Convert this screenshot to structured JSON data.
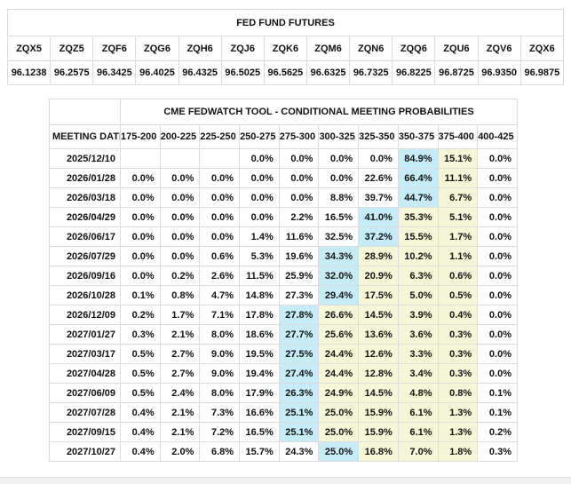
{
  "futures_table": {
    "title": "FED FUND FUTURES",
    "contracts": [
      "ZQX5",
      "ZQZ5",
      "ZQF6",
      "ZQG6",
      "ZQH6",
      "ZQJ6",
      "ZQK6",
      "ZQM6",
      "ZQN6",
      "ZQQ6",
      "ZQU6",
      "ZQV6",
      "ZQX6"
    ],
    "prices": [
      "96.1238",
      "96.2575",
      "96.3425",
      "96.4025",
      "96.4325",
      "96.5025",
      "96.5625",
      "96.6325",
      "96.7325",
      "96.8225",
      "96.8725",
      "96.9350",
      "96.9875"
    ]
  },
  "fedwatch_table": {
    "title": "CME FEDWATCH TOOL - CONDITIONAL MEETING PROBABILITIES",
    "date_header": "MEETING DATE",
    "range_headers": [
      "175-200",
      "200-225",
      "225-250",
      "250-275",
      "275-300",
      "300-325",
      "325-350",
      "350-375",
      "375-400",
      "400-425"
    ],
    "rows": [
      {
        "date": "2025/12/10",
        "cells": [
          "",
          "",
          "",
          "0.0%",
          "0.0%",
          "0.0%",
          "0.0%",
          "84.9%",
          "15.1%",
          "0.0%"
        ],
        "hl": [
          "",
          "",
          "",
          "",
          "",
          "",
          "",
          "c",
          "y",
          ""
        ]
      },
      {
        "date": "2026/01/28",
        "cells": [
          "0.0%",
          "0.0%",
          "0.0%",
          "0.0%",
          "0.0%",
          "0.0%",
          "22.6%",
          "66.4%",
          "11.1%",
          "0.0%"
        ],
        "hl": [
          "",
          "",
          "",
          "",
          "",
          "",
          "",
          "c",
          "y",
          ""
        ]
      },
      {
        "date": "2026/03/18",
        "cells": [
          "0.0%",
          "0.0%",
          "0.0%",
          "0.0%",
          "0.0%",
          "8.8%",
          "39.7%",
          "44.7%",
          "6.7%",
          "0.0%"
        ],
        "hl": [
          "",
          "",
          "",
          "",
          "",
          "",
          "",
          "c",
          "y",
          ""
        ]
      },
      {
        "date": "2026/04/29",
        "cells": [
          "0.0%",
          "0.0%",
          "0.0%",
          "0.0%",
          "2.2%",
          "16.5%",
          "41.0%",
          "35.3%",
          "5.1%",
          "0.0%"
        ],
        "hl": [
          "",
          "",
          "",
          "",
          "",
          "",
          "c",
          "y",
          "y",
          ""
        ]
      },
      {
        "date": "2026/06/17",
        "cells": [
          "0.0%",
          "0.0%",
          "0.0%",
          "1.4%",
          "11.6%",
          "32.5%",
          "37.2%",
          "15.5%",
          "1.7%",
          "0.0%"
        ],
        "hl": [
          "",
          "",
          "",
          "",
          "",
          "",
          "c",
          "y",
          "y",
          ""
        ]
      },
      {
        "date": "2026/07/29",
        "cells": [
          "0.0%",
          "0.0%",
          "0.6%",
          "5.3%",
          "19.6%",
          "34.3%",
          "28.9%",
          "10.2%",
          "1.1%",
          "0.0%"
        ],
        "hl": [
          "",
          "",
          "",
          "",
          "",
          "c",
          "y",
          "y",
          "y",
          ""
        ]
      },
      {
        "date": "2026/09/16",
        "cells": [
          "0.0%",
          "0.2%",
          "2.6%",
          "11.5%",
          "25.9%",
          "32.0%",
          "20.9%",
          "6.3%",
          "0.6%",
          "0.0%"
        ],
        "hl": [
          "",
          "",
          "",
          "",
          "",
          "c",
          "y",
          "y",
          "y",
          ""
        ]
      },
      {
        "date": "2026/10/28",
        "cells": [
          "0.1%",
          "0.8%",
          "4.7%",
          "14.8%",
          "27.3%",
          "29.4%",
          "17.5%",
          "5.0%",
          "0.5%",
          "0.0%"
        ],
        "hl": [
          "",
          "",
          "",
          "",
          "",
          "c",
          "y",
          "y",
          "y",
          ""
        ]
      },
      {
        "date": "2026/12/09",
        "cells": [
          "0.2%",
          "1.7%",
          "7.1%",
          "17.8%",
          "27.8%",
          "26.6%",
          "14.5%",
          "3.9%",
          "0.4%",
          "0.0%"
        ],
        "hl": [
          "",
          "",
          "",
          "",
          "c",
          "y",
          "y",
          "y",
          "y",
          ""
        ]
      },
      {
        "date": "2027/01/27",
        "cells": [
          "0.3%",
          "2.1%",
          "8.0%",
          "18.6%",
          "27.7%",
          "25.6%",
          "13.6%",
          "3.6%",
          "0.3%",
          "0.0%"
        ],
        "hl": [
          "",
          "",
          "",
          "",
          "c",
          "y",
          "y",
          "y",
          "y",
          ""
        ]
      },
      {
        "date": "2027/03/17",
        "cells": [
          "0.5%",
          "2.7%",
          "9.0%",
          "19.5%",
          "27.5%",
          "24.4%",
          "12.6%",
          "3.3%",
          "0.3%",
          "0.0%"
        ],
        "hl": [
          "",
          "",
          "",
          "",
          "c",
          "y",
          "y",
          "y",
          "y",
          ""
        ]
      },
      {
        "date": "2027/04/28",
        "cells": [
          "0.5%",
          "2.7%",
          "9.0%",
          "19.4%",
          "27.4%",
          "24.4%",
          "12.8%",
          "3.4%",
          "0.3%",
          "0.0%"
        ],
        "hl": [
          "",
          "",
          "",
          "",
          "c",
          "y",
          "y",
          "y",
          "y",
          ""
        ]
      },
      {
        "date": "2027/06/09",
        "cells": [
          "0.5%",
          "2.4%",
          "8.0%",
          "17.9%",
          "26.3%",
          "24.9%",
          "14.5%",
          "4.8%",
          "0.8%",
          "0.1%"
        ],
        "hl": [
          "",
          "",
          "",
          "",
          "c",
          "y",
          "y",
          "y",
          "y",
          ""
        ]
      },
      {
        "date": "2027/07/28",
        "cells": [
          "0.4%",
          "2.1%",
          "7.3%",
          "16.6%",
          "25.1%",
          "25.0%",
          "15.9%",
          "6.1%",
          "1.3%",
          "0.1%"
        ],
        "hl": [
          "",
          "",
          "",
          "",
          "c",
          "y",
          "y",
          "y",
          "y",
          ""
        ]
      },
      {
        "date": "2027/09/15",
        "cells": [
          "0.4%",
          "2.1%",
          "7.2%",
          "16.5%",
          "25.1%",
          "25.0%",
          "15.9%",
          "6.1%",
          "1.3%",
          "0.2%"
        ],
        "hl": [
          "",
          "",
          "",
          "",
          "c",
          "y",
          "y",
          "y",
          "y",
          ""
        ]
      },
      {
        "date": "2027/10/27",
        "cells": [
          "0.4%",
          "2.0%",
          "6.8%",
          "15.7%",
          "24.3%",
          "25.0%",
          "16.8%",
          "7.0%",
          "1.8%",
          "0.3%"
        ],
        "hl": [
          "",
          "",
          "",
          "",
          "",
          "c",
          "y",
          "y",
          "y",
          ""
        ]
      }
    ]
  },
  "colors": {
    "max_highlight": "#c6ecf7",
    "trail_highlight": "#f6f6d8"
  }
}
